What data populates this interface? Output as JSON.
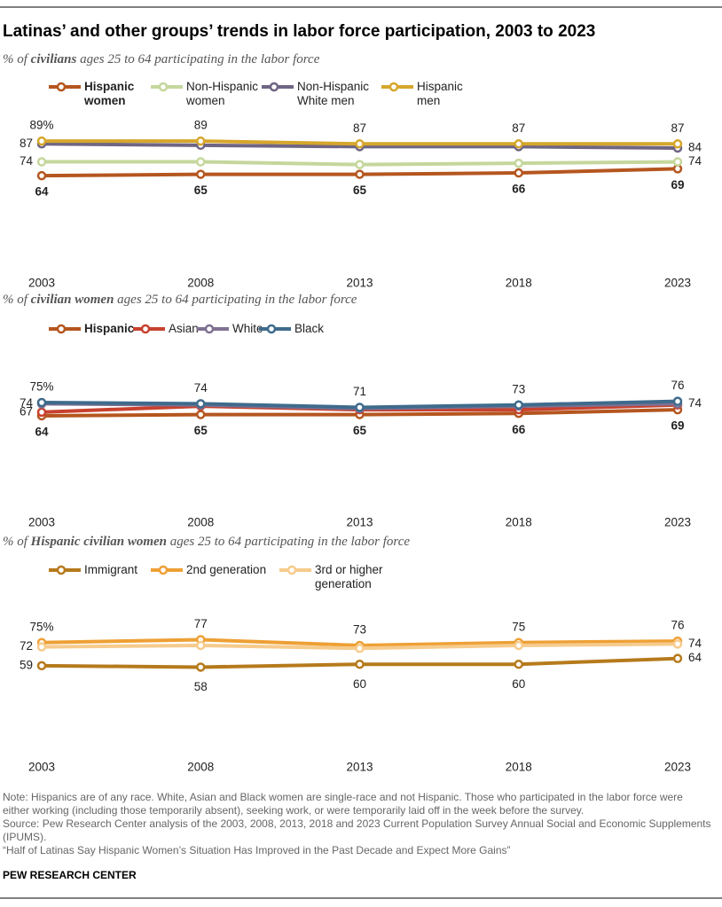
{
  "title": "Latinas’ and other groups’ trends in labor force participation, 2003 to 2023",
  "chart_data": [
    {
      "type": "line",
      "subtitle": [
        "% of ",
        "civilians",
        " ages 25 to 64 participating in the labor force"
      ],
      "x": [
        2003,
        2008,
        2013,
        2018,
        2023
      ],
      "xlim": [
        2003,
        2023
      ],
      "xticks": [
        2003,
        2008,
        2013,
        2018,
        2023
      ],
      "ylim": [
        0,
        100
      ],
      "series": [
        {
          "name": "Hispanic women",
          "color": "#b5561f",
          "bold": true,
          "label_position": "below",
          "values": [
            64,
            65,
            65,
            66,
            69
          ],
          "value_labels": [
            "64",
            "65",
            "65",
            "66",
            "69"
          ]
        },
        {
          "name": "Non-Hispanic women",
          "color": "#c5d79c",
          "label_position": "side",
          "values": [
            74,
            74,
            72,
            73,
            74
          ],
          "value_labels": [
            "74",
            null,
            null,
            null,
            "74"
          ]
        },
        {
          "name": "Non-Hispanic White men",
          "color": "#6f6584",
          "label_position": "side",
          "values": [
            87,
            86,
            85,
            85,
            84
          ],
          "value_labels": [
            "87",
            null,
            null,
            null,
            "84"
          ]
        },
        {
          "name": "Hispanic men",
          "color": "#d6a62c",
          "label_position": "above",
          "values": [
            89,
            89,
            87,
            87,
            87
          ],
          "value_labels": [
            "89%",
            "89",
            "87",
            "87",
            "87"
          ]
        }
      ]
    },
    {
      "type": "line",
      "subtitle": [
        "% of ",
        "civilian women",
        " ages 25 to 64 participating in the labor force"
      ],
      "x": [
        2003,
        2008,
        2013,
        2018,
        2023
      ],
      "xlim": [
        2003,
        2023
      ],
      "xticks": [
        2003,
        2008,
        2013,
        2018,
        2023
      ],
      "ylim": [
        0,
        100
      ],
      "series": [
        {
          "name": "Hispanic",
          "color": "#b5561f",
          "bold": true,
          "label_position": "below",
          "values": [
            64,
            65,
            65,
            66,
            69
          ],
          "value_labels": [
            "64",
            "65",
            "65",
            "66",
            "69"
          ]
        },
        {
          "name": "Asian",
          "color": "#c8412f",
          "label_position": "side",
          "values": [
            67,
            72,
            69,
            69,
            73
          ],
          "value_labels": [
            "67",
            null,
            null,
            null,
            null
          ]
        },
        {
          "name": "White",
          "color": "#7e7192",
          "label_position": "side",
          "values": [
            74,
            73,
            70,
            72,
            74
          ],
          "value_labels": [
            "74",
            null,
            null,
            null,
            "74"
          ]
        },
        {
          "name": "Black",
          "color": "#3f6b8c",
          "label_position": "above",
          "values": [
            75,
            74,
            71,
            73,
            76
          ],
          "value_labels": [
            "75%",
            "74",
            "71",
            "73",
            "76"
          ]
        }
      ]
    },
    {
      "type": "line",
      "subtitle": [
        "% of ",
        "Hispanic civilian women",
        " ages 25 to 64 participating in the labor force"
      ],
      "x": [
        2003,
        2008,
        2013,
        2018,
        2023
      ],
      "xlim": [
        2003,
        2023
      ],
      "xticks": [
        2003,
        2008,
        2013,
        2018,
        2023
      ],
      "ylim": [
        0,
        100
      ],
      "series": [
        {
          "name": "Immigrant",
          "color": "#b67a1c",
          "label_position": "side",
          "values": [
            59,
            58,
            60,
            60,
            64
          ],
          "value_labels": [
            "59",
            "58",
            "60",
            "60",
            "64"
          ]
        },
        {
          "name": "2nd generation",
          "color": "#eea035",
          "label_position": "above",
          "values": [
            75,
            77,
            73,
            75,
            76
          ],
          "value_labels": [
            "75%",
            "77",
            "73",
            "75",
            "76"
          ]
        },
        {
          "name": "3rd or higher generation",
          "color": "#f6cb8c",
          "label_position": "side",
          "values": [
            72,
            73,
            71,
            73,
            74
          ],
          "value_labels": [
            "72",
            null,
            null,
            null,
            "74"
          ]
        }
      ]
    }
  ],
  "notes": [
    "Note: Hispanics are of any race. White, Asian and Black women are single-race and not Hispanic. Those who participated in the labor force were either working (including those temporarily absent), seeking work, or were temporarily laid off in the week before the survey.",
    "Source: Pew Research Center analysis of the 2003, 2008, 2013, 2018 and 2023 Current Population Survey Annual Social and Economic Supplements (IPUMS).",
    "“Half of Latinas Say Hispanic Women’s Situation Has Improved in the Past Decade and Expect More Gains”"
  ],
  "credit": "PEW RESEARCH CENTER"
}
